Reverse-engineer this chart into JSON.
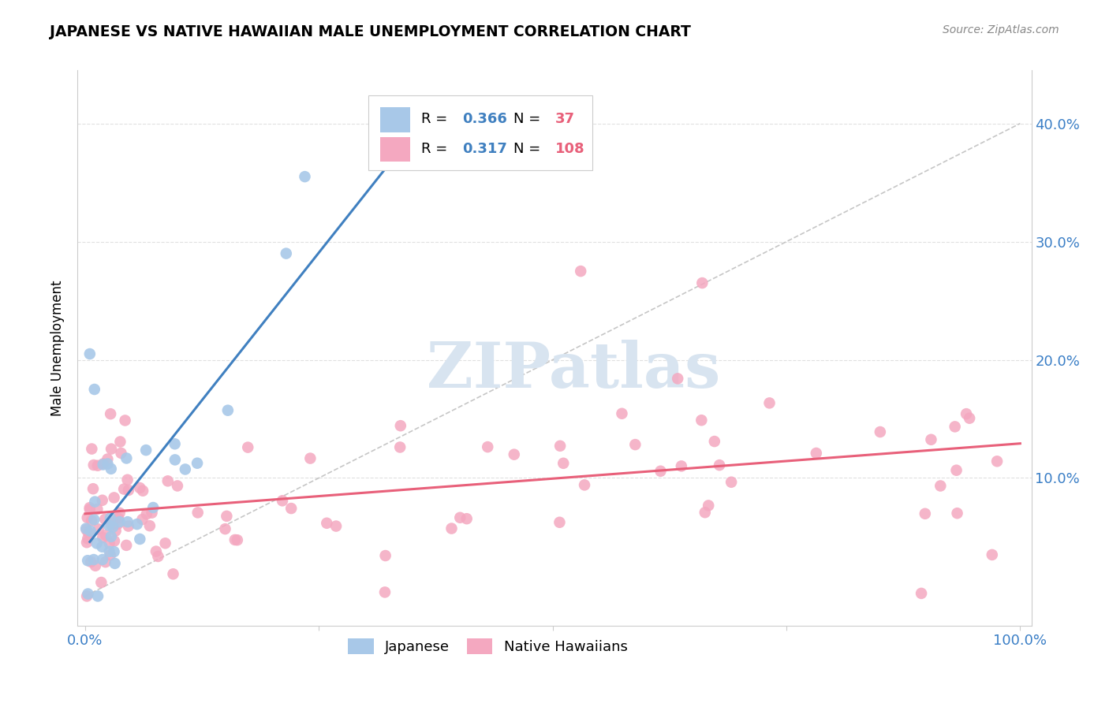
{
  "title": "JAPANESE VS NATIVE HAWAIIAN MALE UNEMPLOYMENT CORRELATION CHART",
  "source": "Source: ZipAtlas.com",
  "ylabel": "Male Unemployment",
  "japanese_R": 0.366,
  "japanese_N": 37,
  "hawaiian_R": 0.317,
  "hawaiian_N": 108,
  "japanese_color": "#A8C8E8",
  "hawaiian_color": "#F4A8C0",
  "japanese_line_color": "#4080C0",
  "hawaiian_line_color": "#E8607A",
  "diagonal_color": "#C0C0C0",
  "watermark": "ZIPatlas",
  "watermark_color": "#D8E4F0",
  "legend_r_color": "#4080C0",
  "legend_n_color": "#E8607A",
  "background_color": "#FFFFFF",
  "grid_color": "#DDDDDD",
  "axis_color": "#3A7EC6",
  "title_color": "#000000",
  "source_color": "#888888"
}
